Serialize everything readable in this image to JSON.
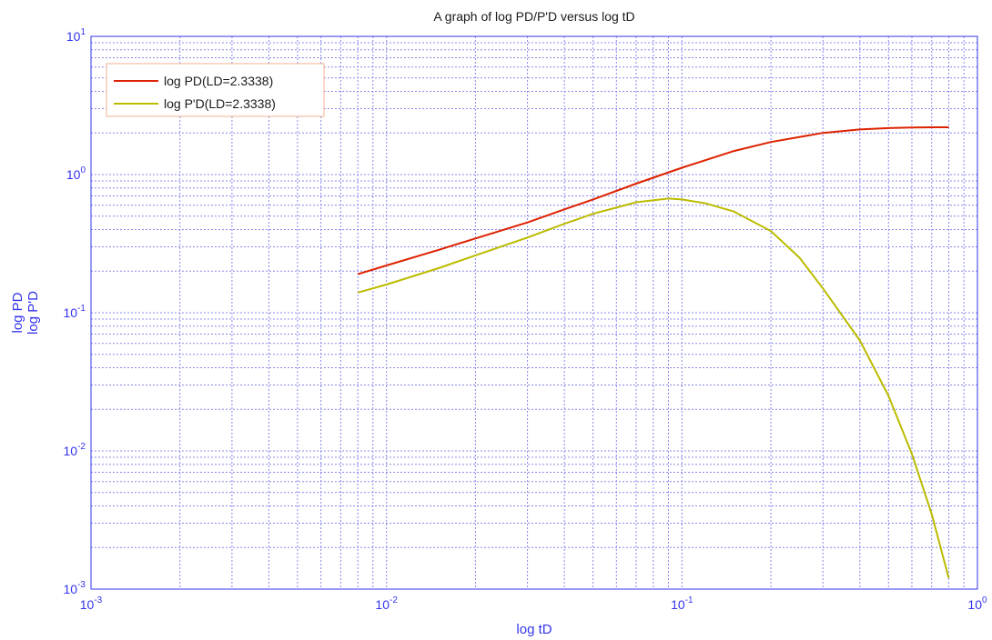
{
  "chart_data": {
    "type": "line",
    "title": "A graph of log PD/P'D versus log tD",
    "xlabel": "log tD",
    "ylabel": [
      "log PD",
      "log P'D"
    ],
    "xscale": "log",
    "yscale": "log",
    "xlim": [
      0.001,
      1
    ],
    "ylim": [
      0.001,
      10
    ],
    "x_ticks": [
      {
        "value": 0.001,
        "base": "10",
        "exp": "-3"
      },
      {
        "value": 0.01,
        "base": "10",
        "exp": "-2"
      },
      {
        "value": 0.1,
        "base": "10",
        "exp": "-1"
      },
      {
        "value": 1,
        "base": "10",
        "exp": "0"
      }
    ],
    "y_ticks": [
      {
        "value": 0.001,
        "base": "10",
        "exp": "-3"
      },
      {
        "value": 0.01,
        "base": "10",
        "exp": "-2"
      },
      {
        "value": 0.1,
        "base": "10",
        "exp": "-1"
      },
      {
        "value": 1,
        "base": "10",
        "exp": "0"
      },
      {
        "value": 10,
        "base": "10",
        "exp": "1"
      }
    ],
    "grid": true,
    "legend_position": "top-left",
    "series": [
      {
        "name": "log PD(LD=2.3338)",
        "color": "#dd2200",
        "points": [
          [
            0.008,
            0.19
          ],
          [
            0.01,
            0.22
          ],
          [
            0.015,
            0.285
          ],
          [
            0.02,
            0.345
          ],
          [
            0.03,
            0.45
          ],
          [
            0.04,
            0.56
          ],
          [
            0.05,
            0.66
          ],
          [
            0.07,
            0.86
          ],
          [
            0.1,
            1.12
          ],
          [
            0.15,
            1.48
          ],
          [
            0.2,
            1.72
          ],
          [
            0.3,
            2.0
          ],
          [
            0.4,
            2.12
          ],
          [
            0.5,
            2.17
          ],
          [
            0.6,
            2.19
          ],
          [
            0.7,
            2.2
          ],
          [
            0.8,
            2.2
          ]
        ]
      },
      {
        "name": "log P'D(LD=2.3338)",
        "color": "#bbbb00",
        "points": [
          [
            0.008,
            0.14
          ],
          [
            0.01,
            0.16
          ],
          [
            0.015,
            0.21
          ],
          [
            0.02,
            0.26
          ],
          [
            0.03,
            0.35
          ],
          [
            0.04,
            0.44
          ],
          [
            0.05,
            0.52
          ],
          [
            0.07,
            0.63
          ],
          [
            0.09,
            0.67
          ],
          [
            0.1,
            0.66
          ],
          [
            0.12,
            0.62
          ],
          [
            0.15,
            0.54
          ],
          [
            0.2,
            0.39
          ],
          [
            0.25,
            0.25
          ],
          [
            0.3,
            0.15
          ],
          [
            0.4,
            0.063
          ],
          [
            0.5,
            0.025
          ],
          [
            0.6,
            0.0095
          ],
          [
            0.7,
            0.0035
          ],
          [
            0.8,
            0.0012
          ]
        ]
      }
    ]
  }
}
